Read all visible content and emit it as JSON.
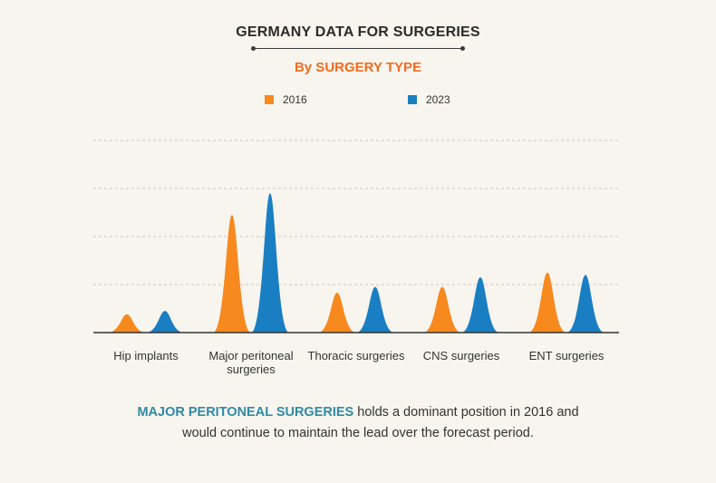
{
  "title": "GERMANY DATA FOR SURGERIES",
  "subtitle": "By SURGERY TYPE",
  "colors": {
    "series_2016": "#f7891f",
    "series_2023": "#1a7fc2",
    "subtitle": "#f26b1d",
    "highlight": "#2e8aa6"
  },
  "chart_data": {
    "type": "area",
    "categories": [
      "Hip implants",
      "Major peritoneal surgeries",
      "Thoracic surgeries",
      "CNS surgeries",
      "ENT surgeries"
    ],
    "series": [
      {
        "name": "2016",
        "values": [
          0.38,
          2.45,
          0.83,
          0.95,
          1.25
        ]
      },
      {
        "name": "2023",
        "values": [
          0.45,
          2.9,
          0.95,
          1.15,
          1.2
        ]
      }
    ],
    "ylim": [
      0,
      4
    ],
    "grid": true,
    "legend_position": "top-center",
    "xlabel": "",
    "ylabel": ""
  },
  "footer": {
    "highlight": "MAJOR PERITONEAL SURGERIES",
    "line1_rest": " holds a dominant position in 2016 and",
    "line2": "would continue to maintain the lead over the forecast period."
  }
}
